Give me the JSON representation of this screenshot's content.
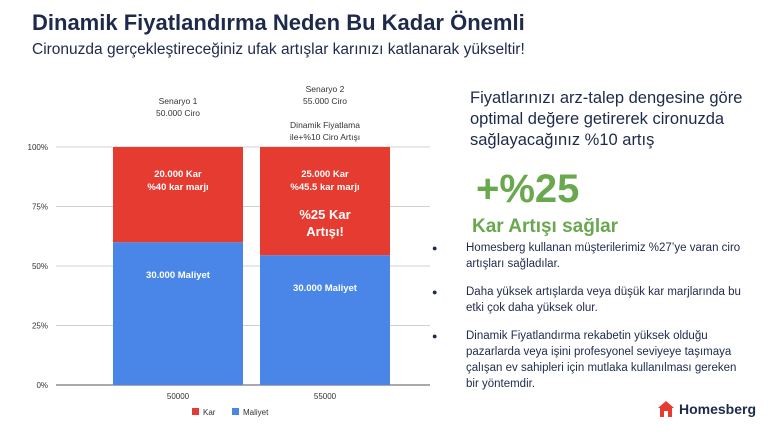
{
  "header": {
    "title": "Dinamik Fiyatlandırma Neden Bu Kadar Önemli",
    "subtitle": "Cironuzda gerçekleştireceğiniz ufak artışlar karınızı katlanarak yükseltir!"
  },
  "chart_data": {
    "type": "bar",
    "stacked": true,
    "normalized": true,
    "categories": [
      "50000",
      "55000"
    ],
    "scenario_labels": [
      [
        "Senaryo 1",
        "50.000 Ciro"
      ],
      [
        "Senaryo 2",
        "55.000 Ciro",
        "",
        "Dinamik Fiyatlama",
        "ile+%10 Ciro Artışı"
      ]
    ],
    "series": [
      {
        "name": "Maliyet",
        "color": "#4a86e8",
        "values": [
          30000,
          30000
        ],
        "labels": [
          "30.000 Maliyet",
          "30.000 Maliyet"
        ]
      },
      {
        "name": "Kar",
        "color": "#e53b30",
        "values": [
          20000,
          25000
        ],
        "labels": [
          [
            "20.000 Kar",
            "%40 kar marjı"
          ],
          [
            "25.000 Kar",
            "%45.5 kar marjı"
          ]
        ]
      }
    ],
    "annotation": [
      "%25 Kar",
      "Artışı!"
    ],
    "ylim": [
      0,
      100
    ],
    "yticks": [
      "0%",
      "25%",
      "50%",
      "75%",
      "100%"
    ],
    "grid": true,
    "legend_position": "bottom"
  },
  "right": {
    "lead": "Fiyatlarınızı arz-talep dengesine göre optimal değere getirerek cironuzda sağlayacağınız %10 artış",
    "big": "+%25",
    "big_sub": "Kar Artışı sağlar"
  },
  "bullets": [
    "Homesberg kullanan müşterilerimiz %27’ye varan ciro artışları sağladılar.",
    "Daha yüksek artışlarda veya düşük kar marjlarında bu etki çok daha yüksek olur.",
    "Dinamik Fiyatlandırma rekabetin yüksek olduğu pazarlarda veya işini profesyonel seviyeye taşımaya çalışan ev sahipleri için mutlaka kullanılması gereken bir yöntemdir."
  ],
  "logo": {
    "text": "Homesberg",
    "color": "#e53b30"
  }
}
